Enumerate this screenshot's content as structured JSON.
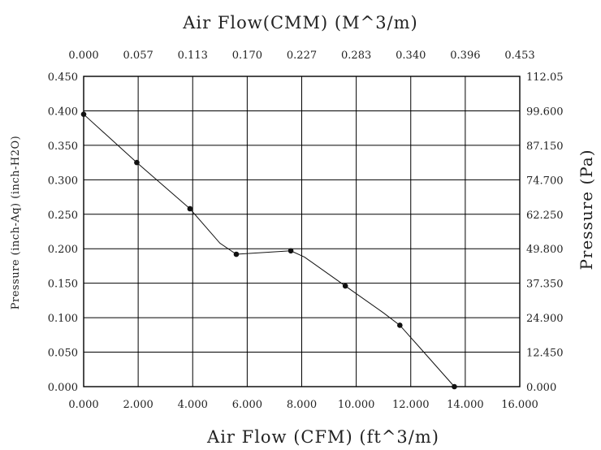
{
  "chart_data": {
    "type": "line",
    "title": "Air Flow(CMM) (M^3/m)",
    "xlabel": "Air Flow (CFM) (ft^3/m)",
    "ylabel_left": "Pressure (inch-Aq) (inch-H2O)",
    "ylabel_right": "Pressure (Pa)",
    "xlim": [
      0,
      16
    ],
    "ylim": [
      0,
      0.45
    ],
    "grid": true,
    "x_ticks": [
      "0.000",
      "2.000",
      "4.000",
      "6.000",
      "8.000",
      "10.000",
      "12.000",
      "14.000",
      "16.000"
    ],
    "x_top_ticks": [
      "0.000",
      "0.057",
      "0.113",
      "0.170",
      "0.227",
      "0.283",
      "0.340",
      "0.396",
      "0.453"
    ],
    "y_ticks": [
      "0.000",
      "0.050",
      "0.100",
      "0.150",
      "0.200",
      "0.250",
      "0.300",
      "0.350",
      "0.400",
      "0.450"
    ],
    "y_right_ticks": [
      "0.000",
      "12.450",
      "24.900",
      "37.350",
      "49.800",
      "62.250",
      "74.700",
      "87.150",
      "99.600",
      "112.05"
    ],
    "series": [
      {
        "curve_x": [
          0.0,
          1.95,
          3.9,
          5.0,
          5.6,
          7.6,
          8.1,
          9.6,
          11.0,
          11.6,
          12.3,
          13.6
        ],
        "curve_y": [
          0.395,
          0.325,
          0.258,
          0.208,
          0.192,
          0.197,
          0.188,
          0.146,
          0.107,
          0.089,
          0.058,
          0.0
        ],
        "marker_x": [
          0.0,
          1.95,
          3.9,
          5.6,
          7.6,
          9.6,
          11.6,
          13.6
        ],
        "marker_y": [
          0.395,
          0.325,
          0.258,
          0.192,
          0.197,
          0.146,
          0.089,
          0.0
        ]
      }
    ]
  }
}
